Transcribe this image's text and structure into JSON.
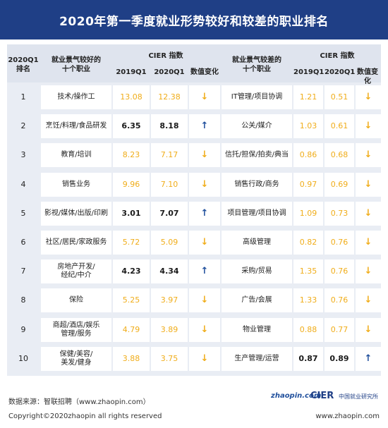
{
  "title": "2020年第一季度就业形势较好和较差的职业排名",
  "header": {
    "rank_line1": "2020Q1",
    "rank_line2": "排名",
    "best_label_line1": "就业景气较好的",
    "best_label_line2": "十个职业",
    "worst_label_line1": "就业景气较差的",
    "worst_label_line2": "十个职业",
    "cier_index": "CIER 指数",
    "col_2019": "2019Q1",
    "col_2020": "2020Q1",
    "col_change": "数值变化"
  },
  "chart_data": {
    "type": "table",
    "title": "2020年第一季度就业形势较好和较差的职业排名",
    "columns": [
      "2020Q1排名",
      "就业景气较好的十个职业",
      "2019Q1",
      "2020Q1",
      "数值变化",
      "就业景气较差的十个职业",
      "2019Q1",
      "2020Q1",
      "数值变化"
    ],
    "rows": [
      {
        "rank": "1",
        "best": {
          "name": [
            "技术/操作工"
          ],
          "v2019": "13.08",
          "v2020": "12.38",
          "change": "down",
          "highlight": "gold"
        },
        "worst": {
          "name": [
            "IT管理/项目协调"
          ],
          "v2019": "1.21",
          "v2020": "0.51",
          "change": "down",
          "highlight": "gold"
        }
      },
      {
        "rank": "2",
        "best": {
          "name": [
            "烹饪/料理/食品研发"
          ],
          "v2019": "6.35",
          "v2020": "8.18",
          "change": "up",
          "highlight": "bold"
        },
        "worst": {
          "name": [
            "公关/媒介"
          ],
          "v2019": "1.03",
          "v2020": "0.61",
          "change": "down",
          "highlight": "gold"
        }
      },
      {
        "rank": "3",
        "best": {
          "name": [
            "教育/培训"
          ],
          "v2019": "8.23",
          "v2020": "7.17",
          "change": "down",
          "highlight": "gold"
        },
        "worst": {
          "name": [
            "信托/担保/拍卖/典当"
          ],
          "v2019": "0.86",
          "v2020": "0.68",
          "change": "down",
          "highlight": "gold"
        }
      },
      {
        "rank": "4",
        "best": {
          "name": [
            "销售业务"
          ],
          "v2019": "9.96",
          "v2020": "7.10",
          "change": "down",
          "highlight": "gold"
        },
        "worst": {
          "name": [
            "销售行政/商务"
          ],
          "v2019": "0.97",
          "v2020": "0.69",
          "change": "down",
          "highlight": "gold"
        }
      },
      {
        "rank": "5",
        "best": {
          "name": [
            "影视/媒体/出版/印刷"
          ],
          "v2019": "3.01",
          "v2020": "7.07",
          "change": "up",
          "highlight": "bold"
        },
        "worst": {
          "name": [
            "项目管理/项目协调"
          ],
          "v2019": "1.09",
          "v2020": "0.73",
          "change": "down",
          "highlight": "gold"
        }
      },
      {
        "rank": "6",
        "best": {
          "name": [
            "社区/居民/家政服务"
          ],
          "v2019": "5.72",
          "v2020": "5.09",
          "change": "down",
          "highlight": "gold"
        },
        "worst": {
          "name": [
            "高级管理"
          ],
          "v2019": "0.82",
          "v2020": "0.76",
          "change": "down",
          "highlight": "gold"
        }
      },
      {
        "rank": "7",
        "best": {
          "name": [
            "房地产开发/",
            "经纪/中介"
          ],
          "v2019": "4.23",
          "v2020": "4.34",
          "change": "up",
          "highlight": "bold"
        },
        "worst": {
          "name": [
            "采购/贸易"
          ],
          "v2019": "1.35",
          "v2020": "0.76",
          "change": "down",
          "highlight": "gold"
        }
      },
      {
        "rank": "8",
        "best": {
          "name": [
            "保险"
          ],
          "v2019": "5.25",
          "v2020": "3.97",
          "change": "down",
          "highlight": "gold"
        },
        "worst": {
          "name": [
            "广告/会展"
          ],
          "v2019": "1.33",
          "v2020": "0.76",
          "change": "down",
          "highlight": "gold"
        }
      },
      {
        "rank": "9",
        "best": {
          "name": [
            "商超/酒店/娱乐",
            "管理/服务"
          ],
          "v2019": "4.79",
          "v2020": "3.89",
          "change": "down",
          "highlight": "gold"
        },
        "worst": {
          "name": [
            "物业管理"
          ],
          "v2019": "0.88",
          "v2020": "0.77",
          "change": "down",
          "highlight": "gold"
        }
      },
      {
        "rank": "10",
        "best": {
          "name": [
            "保健/美容/",
            "美发/健身"
          ],
          "v2019": "3.88",
          "v2020": "3.75",
          "change": "down",
          "highlight": "gold"
        },
        "worst": {
          "name": [
            "生产管理/运营"
          ],
          "v2019": "0.87",
          "v2020": "0.89",
          "change": "up",
          "highlight": "bold"
        }
      }
    ]
  },
  "icons": {
    "down": "arrow-down-icon",
    "up": "arrow-up-icon"
  },
  "colors": {
    "title_bg": "#1f3f86",
    "gold": "#f0ad1a",
    "up_arrow": "#1f4f9c",
    "panel": "#e9edf4"
  },
  "footer": {
    "source": "数据来源：智联招聘（www.zhaopin.com）",
    "copyright": "Copyright©2020zhaopin all rights reserved",
    "url": "www.zhaopin.com",
    "logo_zhaopin": "zhaopin.com",
    "logo_cier": "CIER",
    "logo_cier_sub": "中国就业研究所"
  }
}
